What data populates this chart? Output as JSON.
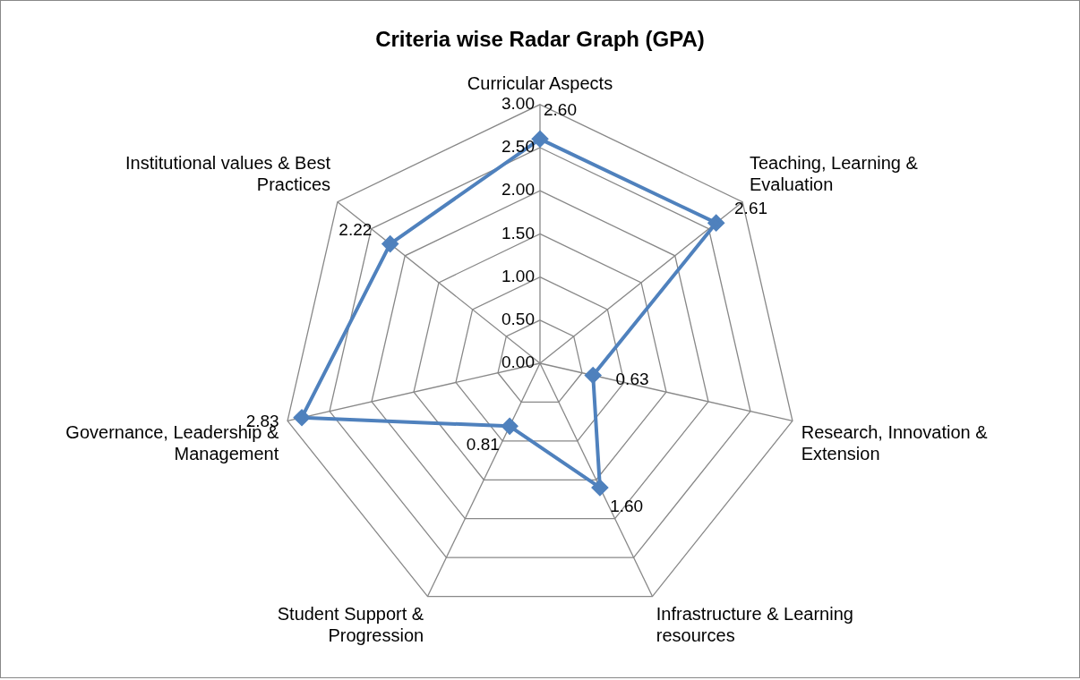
{
  "chart_data": {
    "type": "radar",
    "title": "Criteria wise Radar Graph (GPA)",
    "categories": [
      "Curricular Aspects",
      "Teaching, Learning & Evaluation",
      "Research, Innovation & Extension",
      "Infrastructure & Learning resources",
      "Student Support & Progression",
      "Governance, Leadership & Management",
      "Institutional values & Best Practices"
    ],
    "series": [
      {
        "color": "#4f81bd",
        "values": [
          2.6,
          2.61,
          0.63,
          1.6,
          0.81,
          2.83,
          2.22
        ],
        "value_labels": [
          "2.60",
          "2.61",
          "0.63",
          "1.60",
          "0.81",
          "2.83",
          "2.22"
        ]
      }
    ],
    "ylim": [
      0,
      3
    ],
    "yticks": [
      {
        "value": 0,
        "label": "0.00"
      },
      {
        "value": 0.5,
        "label": "0.50"
      },
      {
        "value": 1,
        "label": "1.00"
      },
      {
        "value": 1.5,
        "label": "1.50"
      },
      {
        "value": 2,
        "label": "2.00"
      },
      {
        "value": 2.5,
        "label": "2.50"
      },
      {
        "value": 3,
        "label": "3.00"
      }
    ],
    "grid": true,
    "legend": false,
    "marker": "diamond",
    "line_style": "solid"
  }
}
